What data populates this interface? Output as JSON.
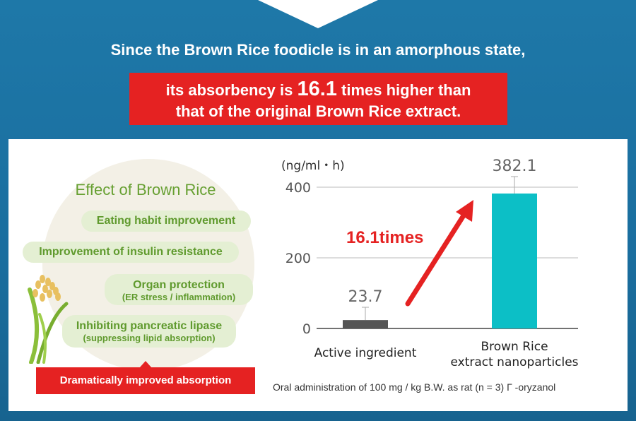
{
  "headline": {
    "line1": "Since the Brown Rice foodicle is in an amorphous state,",
    "red_pre": "its absorbency is ",
    "red_big": "16.1",
    "red_post": " times higher than",
    "red_line2": "that of the original Brown Rice extract."
  },
  "effects": {
    "title": "Effect of Brown Rice",
    "items": [
      {
        "main": "Eating habit improvement",
        "sub": ""
      },
      {
        "main": "Improvement of insulin resistance",
        "sub": ""
      },
      {
        "main": "Organ protection",
        "sub": "(ER stress / inflammation)"
      },
      {
        "main": "Inhibiting pancreatic lipase",
        "sub": "(suppressing lipid absorption)"
      }
    ],
    "button": "Dramatically improved absorption"
  },
  "chart_data": {
    "type": "bar",
    "ylabel": "(ng/ml・h)",
    "categories": [
      [
        "Active ingredient"
      ],
      [
        "Brown Rice",
        "extract nanoparticles"
      ]
    ],
    "values": [
      23.7,
      382.1
    ],
    "value_labels": [
      "23.7",
      "382.1"
    ],
    "error_upper": [
      60,
      430
    ],
    "yticks": [
      0,
      200,
      400
    ],
    "ylim": [
      0,
      400
    ],
    "colors": [
      "#555555",
      "#0cbfc6"
    ],
    "annotation": "16.1times",
    "annotation_color": "#e52222",
    "grid": true
  },
  "caption": "Oral administration of 100 mg / kg B.W. as rat (n = 3) Γ -oryzanol",
  "colors": {
    "background": "#1a6e9f",
    "accent": "#e52222",
    "green": "#67a032",
    "teal": "#0cbfc6"
  }
}
